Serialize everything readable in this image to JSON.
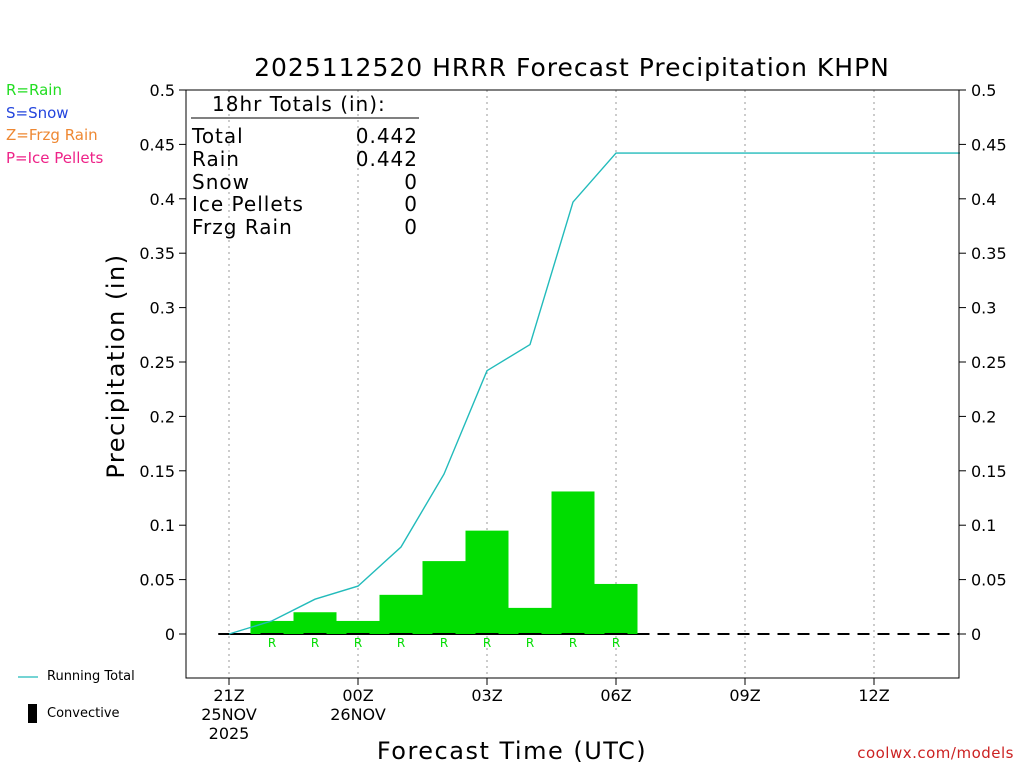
{
  "chart_data": {
    "type": "bar",
    "title": "2025112520 HRRR Forecast Precipitation KHPN",
    "xlabel": "Forecast Time (UTC)",
    "ylabel": "Precipitation (in)",
    "ylim": [
      -0.04,
      0.5
    ],
    "yticks": [
      "0.5",
      "0.45",
      "0.4",
      "0.35",
      "0.3",
      "0.25",
      "0.2",
      "0.15",
      "0.1",
      "0.05",
      "0"
    ],
    "ytick_values": [
      0.5,
      0.45,
      0.4,
      0.35,
      0.3,
      0.25,
      0.2,
      0.15,
      0.1,
      0.05,
      0
    ],
    "xlim_hours": [
      -1,
      17
    ],
    "xticks": [
      {
        "hour": 0,
        "label": "21Z",
        "date": "25NOV",
        "year": "2025"
      },
      {
        "hour": 3,
        "label": "00Z",
        "date": "26NOV",
        "year": ""
      },
      {
        "hour": 6,
        "label": "03Z",
        "date": "",
        "year": ""
      },
      {
        "hour": 9,
        "label": "06Z",
        "date": "",
        "year": ""
      },
      {
        "hour": 12,
        "label": "09Z",
        "date": "",
        "year": ""
      },
      {
        "hour": 15,
        "label": "12Z",
        "date": "",
        "year": ""
      }
    ],
    "hourly_precip": {
      "hours": [
        1,
        2,
        3,
        4,
        5,
        6,
        7,
        8,
        9
      ],
      "values": [
        0.012,
        0.02,
        0.012,
        0.036,
        0.067,
        0.095,
        0.024,
        0.131,
        0.046
      ],
      "ptype": [
        "R",
        "R",
        "R",
        "R",
        "R",
        "R",
        "R",
        "R",
        "R"
      ],
      "color": "#00dd00"
    },
    "running_total": {
      "name": "Running Total",
      "hours": [
        0,
        1,
        2,
        3,
        4,
        5,
        6,
        7,
        8,
        9,
        17
      ],
      "values": [
        0,
        0.012,
        0.032,
        0.044,
        0.08,
        0.147,
        0.242,
        0.266,
        0.397,
        0.442,
        0.442
      ],
      "color": "#22bbbb"
    },
    "grid": "vertical-dotted",
    "totals_box": {
      "header": "18hr Totals (in):",
      "rows": [
        {
          "label": "Total",
          "value": "0.442"
        },
        {
          "label": "Rain",
          "value": "0.442"
        },
        {
          "label": "Snow",
          "value": "0"
        },
        {
          "label": "Ice Pellets",
          "value": "0"
        },
        {
          "label": "Frzg Rain",
          "value": "0"
        }
      ]
    }
  },
  "ptype_legend": [
    {
      "text": "R=Rain",
      "color": "#22dd22"
    },
    {
      "text": "S=Snow",
      "color": "#2244dd"
    },
    {
      "text": "Z=Frzg Rain",
      "color": "#ee8833"
    },
    {
      "text": "P=Ice Pellets",
      "color": "#ee2288"
    }
  ],
  "bottom_legend": {
    "running_total_label": "Running Total",
    "convective_label": "Convective"
  },
  "credit": "coolwx.com/models"
}
